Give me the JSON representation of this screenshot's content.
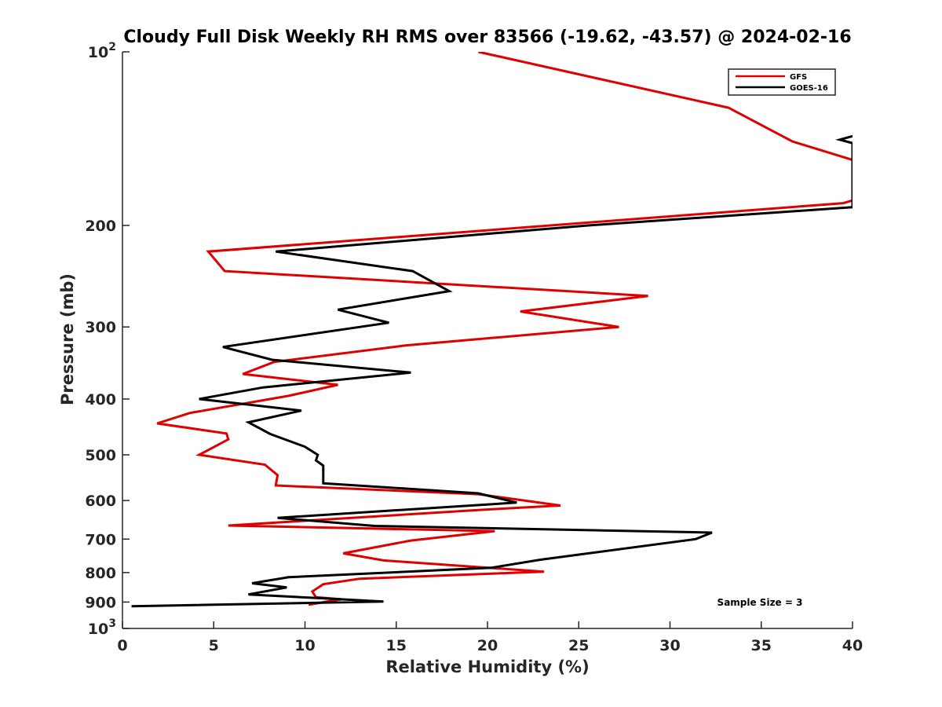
{
  "chart_data": {
    "type": "line",
    "title": "Cloudy Full Disk Weekly RH RMS over 83566 (-19.62, -43.57) @ 2024-02-16",
    "xlabel": "Relative Humidity (%)",
    "ylabel": "Pressure (mb)",
    "xlim": [
      0,
      40
    ],
    "ylim": [
      100,
      1000
    ],
    "y_scale": "log",
    "y_reversed": true,
    "x_ticks": [
      0,
      5,
      10,
      15,
      20,
      25,
      30,
      35,
      40
    ],
    "x_tick_labels": [
      "0",
      "5",
      "10",
      "15",
      "20",
      "25",
      "30",
      "35",
      "40"
    ],
    "y_ticks": [
      100,
      200,
      300,
      400,
      500,
      600,
      700,
      800,
      900,
      1000
    ],
    "y_tick_labels": [
      {
        "base": "10",
        "exp": "2"
      },
      {
        "base": "200",
        "exp": ""
      },
      {
        "base": "300",
        "exp": ""
      },
      {
        "base": "400",
        "exp": ""
      },
      {
        "base": "500",
        "exp": ""
      },
      {
        "base": "600",
        "exp": ""
      },
      {
        "base": "700",
        "exp": ""
      },
      {
        "base": "800",
        "exp": ""
      },
      {
        "base": "900",
        "exp": ""
      },
      {
        "base": "10",
        "exp": "3"
      }
    ],
    "grid": false,
    "legend_position": "top-right",
    "annotation": "Sample Size = 3",
    "series": [
      {
        "name": "GFS",
        "color": "#e00000",
        "points": [
          [
            19.5,
            100
          ],
          [
            33.2,
            125
          ],
          [
            36.7,
            143
          ],
          [
            40,
            154
          ],
          [
            40,
            181
          ],
          [
            39.5,
            183
          ],
          [
            4.7,
            222
          ],
          [
            5.6,
            240
          ],
          [
            28.8,
            265
          ],
          [
            21.8,
            282
          ],
          [
            27.2,
            300
          ],
          [
            15.5,
            323
          ],
          [
            8.3,
            345
          ],
          [
            6.6,
            362
          ],
          [
            11.8,
            378
          ],
          [
            9.1,
            395
          ],
          [
            3.7,
            423
          ],
          [
            1.9,
            441
          ],
          [
            5.7,
            459
          ],
          [
            5.8,
            470
          ],
          [
            4.2,
            500
          ],
          [
            7.8,
            520
          ],
          [
            8.5,
            542
          ],
          [
            8.4,
            565
          ],
          [
            19.5,
            585
          ],
          [
            24.0,
            612
          ],
          [
            19.5,
            623
          ],
          [
            5.8,
            663
          ],
          [
            20.4,
            678
          ],
          [
            15.8,
            704
          ],
          [
            12.1,
            741
          ],
          [
            14.3,
            762
          ],
          [
            23.1,
            797
          ],
          [
            13.0,
            820
          ],
          [
            11.0,
            838
          ],
          [
            10.4,
            863
          ],
          [
            10.6,
            883
          ],
          [
            12.0,
            890
          ],
          [
            11.5,
            895
          ],
          [
            10.2,
            910
          ]
        ]
      },
      {
        "name": "GOES-16",
        "color": "#000000",
        "points": [
          [
            39.3,
            142
          ],
          [
            40,
            140
          ],
          [
            39.3,
            142
          ],
          [
            40,
            144
          ],
          [
            40,
            186
          ],
          [
            25.5,
            200
          ],
          [
            8.4,
            222
          ],
          [
            15.9,
            240
          ],
          [
            17.9,
            260
          ],
          [
            11.8,
            280
          ],
          [
            14.6,
            295
          ],
          [
            5.5,
            325
          ],
          [
            8.2,
            342
          ],
          [
            15.8,
            360
          ],
          [
            7.7,
            382
          ],
          [
            4.2,
            400
          ],
          [
            9.8,
            419
          ],
          [
            6.9,
            439
          ],
          [
            8.1,
            460
          ],
          [
            10.0,
            484
          ],
          [
            10.7,
            500
          ],
          [
            10.6,
            511
          ],
          [
            11.0,
            522
          ],
          [
            11.0,
            560
          ],
          [
            19.5,
            583
          ],
          [
            21.6,
            605
          ],
          [
            8.5,
            643
          ],
          [
            13.8,
            664
          ],
          [
            32.3,
            682
          ],
          [
            31.4,
            700
          ],
          [
            22.9,
            760
          ],
          [
            20.2,
            785
          ],
          [
            9.1,
            815
          ],
          [
            7.1,
            835
          ],
          [
            9.0,
            849
          ],
          [
            6.9,
            873
          ],
          [
            14.3,
            898
          ],
          [
            0.5,
            915
          ]
        ]
      }
    ]
  }
}
